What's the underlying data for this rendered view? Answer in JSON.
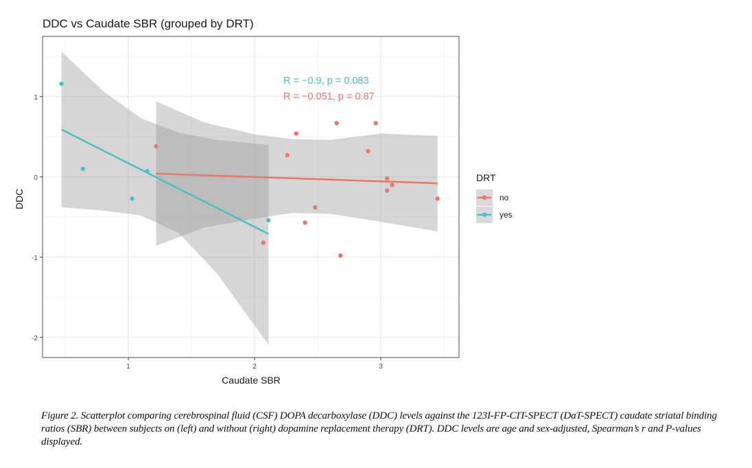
{
  "chart_data": {
    "type": "scatter",
    "title": "DDC vs Caudate SBR (grouped by DRT)",
    "xlabel": "Caudate SBR",
    "ylabel": "DDC",
    "xlim": [
      0.32,
      3.62
    ],
    "ylim": [
      -2.25,
      1.75
    ],
    "x_ticks": [
      1,
      2,
      3
    ],
    "x_tick_labels": [
      "1",
      "2",
      "3"
    ],
    "y_ticks": [
      1,
      0,
      -1,
      -2
    ],
    "y_tick_labels": [
      "1",
      "0",
      "-1",
      "-2"
    ],
    "x_minor": [
      0.5,
      1.5,
      2.5,
      3.5
    ],
    "y_minor": [
      1.5,
      0.5,
      -0.5,
      -1.5
    ],
    "grid": true,
    "legend": {
      "title": "DRT",
      "placement": "right",
      "entries": [
        "no",
        "yes"
      ]
    },
    "series": [
      {
        "name": "no",
        "color": "#E8796F",
        "points": [
          {
            "x": 1.22,
            "y": 0.38
          },
          {
            "x": 2.07,
            "y": -0.82
          },
          {
            "x": 2.26,
            "y": 0.27
          },
          {
            "x": 2.33,
            "y": 0.54
          },
          {
            "x": 2.4,
            "y": -0.57
          },
          {
            "x": 2.48,
            "y": -0.38
          },
          {
            "x": 2.65,
            "y": 0.67
          },
          {
            "x": 2.68,
            "y": -0.98
          },
          {
            "x": 2.9,
            "y": 0.32
          },
          {
            "x": 2.96,
            "y": 0.67
          },
          {
            "x": 3.05,
            "y": -0.02
          },
          {
            "x": 3.09,
            "y": -0.1
          },
          {
            "x": 3.05,
            "y": -0.17
          },
          {
            "x": 3.45,
            "y": -0.27
          }
        ],
        "fit": {
          "x": [
            1.22,
            3.45
          ],
          "y": [
            0.04,
            -0.08
          ]
        },
        "ci_band": {
          "x": [
            1.22,
            1.6,
            2.0,
            2.3,
            2.6,
            3.0,
            3.45
          ],
          "upper": [
            0.94,
            0.68,
            0.53,
            0.47,
            0.46,
            0.54,
            0.51
          ],
          "lower": [
            -0.86,
            -0.63,
            -0.52,
            -0.45,
            -0.46,
            -0.56,
            -0.68
          ]
        },
        "annotation": "R = −0.051, p = 0.87"
      },
      {
        "name": "yes",
        "color": "#4FBFC6",
        "points": [
          {
            "x": 0.47,
            "y": 1.16
          },
          {
            "x": 0.64,
            "y": 0.1
          },
          {
            "x": 1.03,
            "y": -0.27
          },
          {
            "x": 1.15,
            "y": 0.07
          },
          {
            "x": 2.11,
            "y": -0.54
          }
        ],
        "fit": {
          "x": [
            0.47,
            2.11
          ],
          "y": [
            0.59,
            -0.71
          ]
        },
        "ci_band": {
          "x": [
            0.47,
            0.8,
            1.1,
            1.4,
            1.7,
            2.11
          ],
          "upper": [
            1.56,
            1.07,
            0.73,
            0.55,
            0.46,
            0.4
          ],
          "lower": [
            -0.38,
            -0.42,
            -0.48,
            -0.7,
            -1.2,
            -2.09
          ]
        },
        "annotation": "R = −0.9, p = 0.083"
      }
    ]
  },
  "caption": "Figure 2. Scatterplot comparing cerebrospinal fluid (CSF) DOPA decarboxylase (DDC) levels against the 123I-FP-CIT-SPECT (DaT-SPECT) caudate striatal binding ratios (SBR) between subjects on (left) and without (right) dopamine replacement therapy (DRT). DDC levels are age and sex-adjusted, Spearman’s r and P-values displayed."
}
